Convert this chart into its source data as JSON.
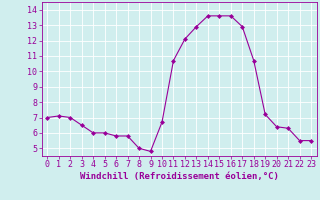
{
  "x": [
    0,
    1,
    2,
    3,
    4,
    5,
    6,
    7,
    8,
    9,
    10,
    11,
    12,
    13,
    14,
    15,
    16,
    17,
    18,
    19,
    20,
    21,
    22,
    23
  ],
  "y": [
    7.0,
    7.1,
    7.0,
    6.5,
    6.0,
    6.0,
    5.8,
    5.8,
    5.0,
    4.8,
    6.7,
    10.7,
    12.1,
    12.9,
    13.6,
    13.6,
    13.6,
    12.9,
    10.7,
    7.2,
    6.4,
    6.3,
    5.5,
    5.5
  ],
  "line_color": "#990099",
  "marker": "D",
  "marker_size": 2.0,
  "bg_color": "#d0eeee",
  "grid_color": "#ffffff",
  "xlabel": "Windchill (Refroidissement éolien,°C)",
  "xlabel_color": "#990099",
  "tick_color": "#990099",
  "ylim": [
    4.5,
    14.5
  ],
  "yticks": [
    5,
    6,
    7,
    8,
    9,
    10,
    11,
    12,
    13,
    14
  ],
  "xlim": [
    -0.5,
    23.5
  ],
  "xticks": [
    0,
    1,
    2,
    3,
    4,
    5,
    6,
    7,
    8,
    9,
    10,
    11,
    12,
    13,
    14,
    15,
    16,
    17,
    18,
    19,
    20,
    21,
    22,
    23
  ],
  "tick_fontsize": 6.0,
  "xlabel_fontsize": 6.5,
  "line_width": 0.8
}
